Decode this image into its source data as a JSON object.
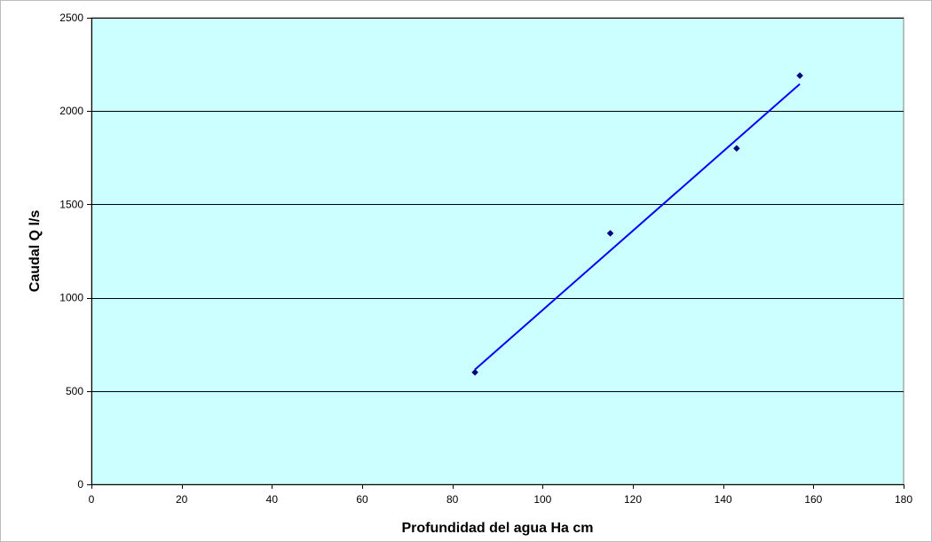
{
  "chart_data": {
    "type": "scatter",
    "title": "",
    "xlabel": "Profundidad del agua Ha cm",
    "ylabel": "Caudal Q l/s",
    "xlim": [
      0,
      180
    ],
    "ylim": [
      0,
      2500
    ],
    "x_ticks": [
      0,
      20,
      40,
      60,
      80,
      100,
      120,
      140,
      160,
      180
    ],
    "y_ticks": [
      0,
      500,
      1000,
      1500,
      2000,
      2500
    ],
    "x_tick_labels": [
      "0",
      "20",
      "40",
      "60",
      "80",
      "100",
      "120",
      "140",
      "160",
      "180"
    ],
    "y_tick_labels": [
      "0",
      "500",
      "1000",
      "1500",
      "2000",
      "2500"
    ],
    "grid": "horizontal",
    "plot_background": "#ccffff",
    "series": [
      {
        "type": "scatter",
        "marker": "diamond",
        "color": "#000080",
        "points": [
          {
            "x": 85,
            "y": 600
          },
          {
            "x": 115,
            "y": 1345
          },
          {
            "x": 143,
            "y": 1800
          },
          {
            "x": 157,
            "y": 2190
          }
        ]
      },
      {
        "type": "line",
        "color": "#0000ff",
        "points": [
          {
            "x": 85,
            "y": 615
          },
          {
            "x": 157,
            "y": 2145
          }
        ]
      }
    ]
  }
}
